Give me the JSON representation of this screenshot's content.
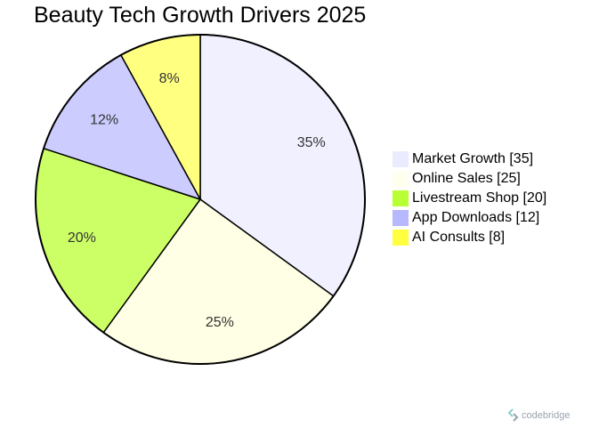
{
  "chart_data": {
    "type": "pie",
    "title": "Beauty Tech Growth Drivers 2025",
    "slices": [
      {
        "label": "Market Growth",
        "value": 35,
        "percent_label": "35%",
        "legend_label": "Market Growth [35]",
        "color": "#f0f0ff"
      },
      {
        "label": "Online Sales",
        "value": 25,
        "percent_label": "25%",
        "legend_label": "Online Sales [25]",
        "color": "#ffffe5"
      },
      {
        "label": "Livestream Shop",
        "value": 20,
        "percent_label": "20%",
        "legend_label": "Livestream Shop [20]",
        "color": "#ccff66"
      },
      {
        "label": "App Downloads",
        "value": 12,
        "percent_label": "12%",
        "legend_label": "App Downloads [12]",
        "color": "#ccccff"
      },
      {
        "label": "AI Consults",
        "value": 8,
        "percent_label": "8%",
        "legend_label": "AI Consults [8]",
        "color": "#ffff80"
      }
    ],
    "legend_colors": [
      "#ebebff",
      "#fffff0",
      "#b8ff33",
      "#b8b8ff",
      "#ffff40"
    ],
    "legend_position": "right",
    "start_angle": "top",
    "direction": "clockwise",
    "stroke_color": "#000000"
  },
  "watermark": {
    "text": "codebridge",
    "icon": "codebridge-logo-icon"
  }
}
